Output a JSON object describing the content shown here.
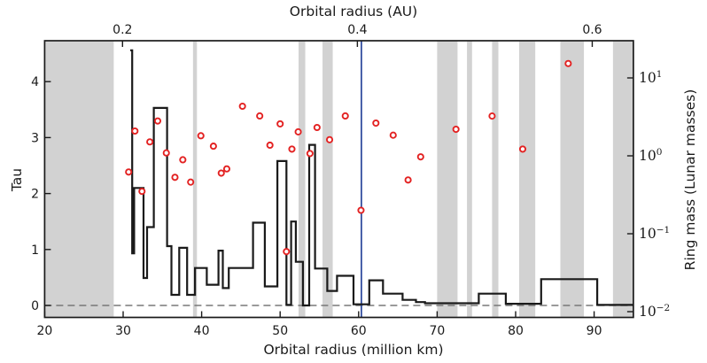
{
  "figure": {
    "background": "#ffffff"
  },
  "chart_data": {
    "type": "mixed",
    "description": "Step profile of Tau and scatter of ring mass versus orbital radius, with gray shaded radius bands, a blue vertical reference line and a dashed zero line",
    "axes": {
      "bottom": {
        "label": "Orbital radius (million km)",
        "ticks": [
          20,
          30,
          40,
          50,
          60,
          70,
          80,
          90
        ],
        "tick_labels": [
          "20",
          "30",
          "40",
          "50",
          "60",
          "70",
          "80",
          "90"
        ],
        "range": [
          20,
          95
        ]
      },
      "top": {
        "label": "Orbital radius (AU)",
        "ticks": [
          0.2,
          0.4,
          0.6
        ],
        "tick_labels": [
          "0.2",
          "0.4",
          "0.6"
        ],
        "km_per_au": 149.6
      },
      "left": {
        "label": "Tau",
        "ticks": [
          0,
          1,
          2,
          3,
          4
        ],
        "tick_labels": [
          "0",
          "1",
          "2",
          "3",
          "4"
        ],
        "range": [
          -0.21,
          4.73
        ]
      },
      "right": {
        "label": "Ring mass (Lunar masses)",
        "scale": "log",
        "tick_base": "10",
        "tick_exponents": [
          -2,
          -1,
          0,
          1
        ],
        "range": [
          0.0085,
          30
        ]
      }
    },
    "shaded_bands": [
      [
        20.0,
        28.8
      ],
      [
        38.9,
        39.4
      ],
      [
        52.35,
        53.2
      ],
      [
        55.4,
        56.7
      ],
      [
        70.0,
        72.6
      ],
      [
        73.8,
        74.45
      ],
      [
        77.0,
        77.8
      ],
      [
        80.45,
        82.5
      ],
      [
        85.7,
        88.7
      ],
      [
        92.4,
        95.0
      ]
    ],
    "band_color": "#d2d2d2",
    "reference_lines": {
      "vertical": {
        "x": 60.35,
        "color": "#3550a0",
        "style": "solid"
      },
      "horizontal": {
        "tau": 0,
        "color": "#787878",
        "style": "dashed"
      }
    },
    "series": [
      {
        "name": "Tau step profile",
        "type": "step",
        "color": "#1a1a1a",
        "x_edges": [
          30.9,
          31.15,
          31.4,
          32.6,
          33.05,
          33.9,
          35.6,
          36.15,
          37.15,
          38.15,
          39.15,
          40.65,
          42.15,
          42.7,
          43.45,
          46.55,
          48.05,
          49.65,
          50.8,
          51.4,
          52.0,
          52.9,
          53.7,
          54.45,
          56.0,
          57.25,
          59.35,
          61.35,
          63.1,
          65.6,
          67.3,
          68.45,
          75.3,
          78.75,
          83.25,
          90.4,
          95.0
        ],
        "tau_values": [
          4.56,
          0.93,
          2.1,
          0.49,
          1.4,
          3.53,
          1.06,
          0.19,
          1.03,
          0.19,
          0.67,
          0.37,
          0.98,
          0.31,
          0.67,
          1.48,
          0.34,
          2.58,
          0.01,
          1.5,
          0.78,
          0.0,
          2.87,
          0.66,
          0.26,
          0.53,
          0.02,
          0.45,
          0.21,
          0.1,
          0.06,
          0.04,
          0.21,
          0.03,
          0.47,
          0.01
        ]
      },
      {
        "name": "Ring mass",
        "type": "scatter",
        "marker": "open-circle",
        "color": "#e32222",
        "points": [
          [
            30.7,
            0.62
          ],
          [
            31.5,
            2.08
          ],
          [
            32.4,
            0.35
          ],
          [
            33.4,
            1.51
          ],
          [
            34.4,
            2.8
          ],
          [
            35.5,
            1.09
          ],
          [
            36.6,
            0.53
          ],
          [
            37.6,
            0.89
          ],
          [
            38.6,
            0.46
          ],
          [
            39.9,
            1.81
          ],
          [
            41.5,
            1.33
          ],
          [
            42.5,
            0.6
          ],
          [
            43.2,
            0.68
          ],
          [
            45.2,
            4.33
          ],
          [
            47.4,
            3.25
          ],
          [
            48.7,
            1.37
          ],
          [
            50.0,
            2.57
          ],
          [
            50.8,
            0.059
          ],
          [
            51.5,
            1.22
          ],
          [
            52.3,
            2.03
          ],
          [
            53.8,
            1.07
          ],
          [
            54.7,
            2.31
          ],
          [
            56.3,
            1.61
          ],
          [
            58.3,
            3.25
          ],
          [
            60.3,
            0.2
          ],
          [
            62.2,
            2.63
          ],
          [
            64.4,
            1.84
          ],
          [
            66.3,
            0.49
          ],
          [
            67.9,
            0.97
          ],
          [
            72.4,
            2.19
          ],
          [
            77.0,
            3.24
          ],
          [
            80.9,
            1.22
          ],
          [
            86.7,
            15.3
          ]
        ]
      }
    ]
  }
}
